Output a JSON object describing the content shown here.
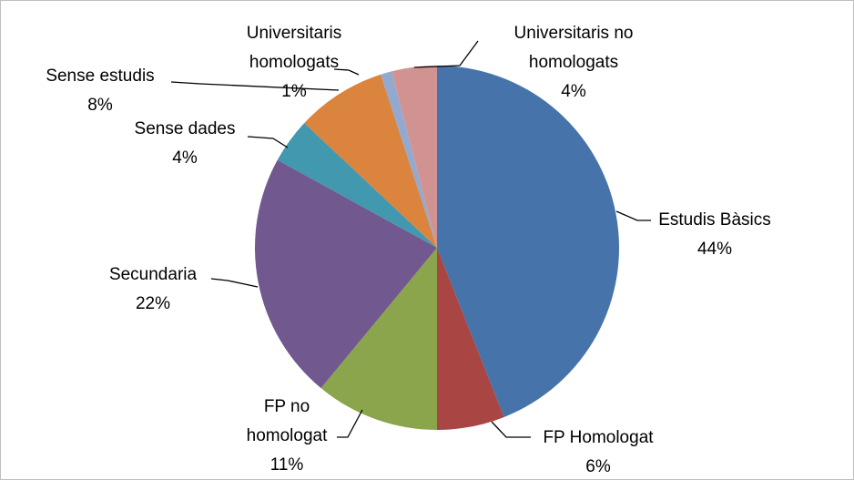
{
  "chart_data": {
    "type": "pie",
    "categories": [
      "Estudis Bàsics",
      "FP Homologat",
      "FP no\nhomologat",
      "Secundaria",
      "Sense dades",
      "Sense estudis",
      "Universitaris\nhomologats",
      "Universitaris no\nhomologats"
    ],
    "values": [
      44,
      6,
      11,
      22,
      4,
      8,
      1,
      4
    ],
    "value_labels": [
      "44%",
      "6%",
      "11%",
      "22%",
      "4%",
      "8%",
      "1%",
      "4%"
    ],
    "colors": [
      "#4674aa",
      "#a94543",
      "#8aa54b",
      "#71588f",
      "#4198af",
      "#db843d",
      "#93a9cf",
      "#d19392"
    ]
  }
}
